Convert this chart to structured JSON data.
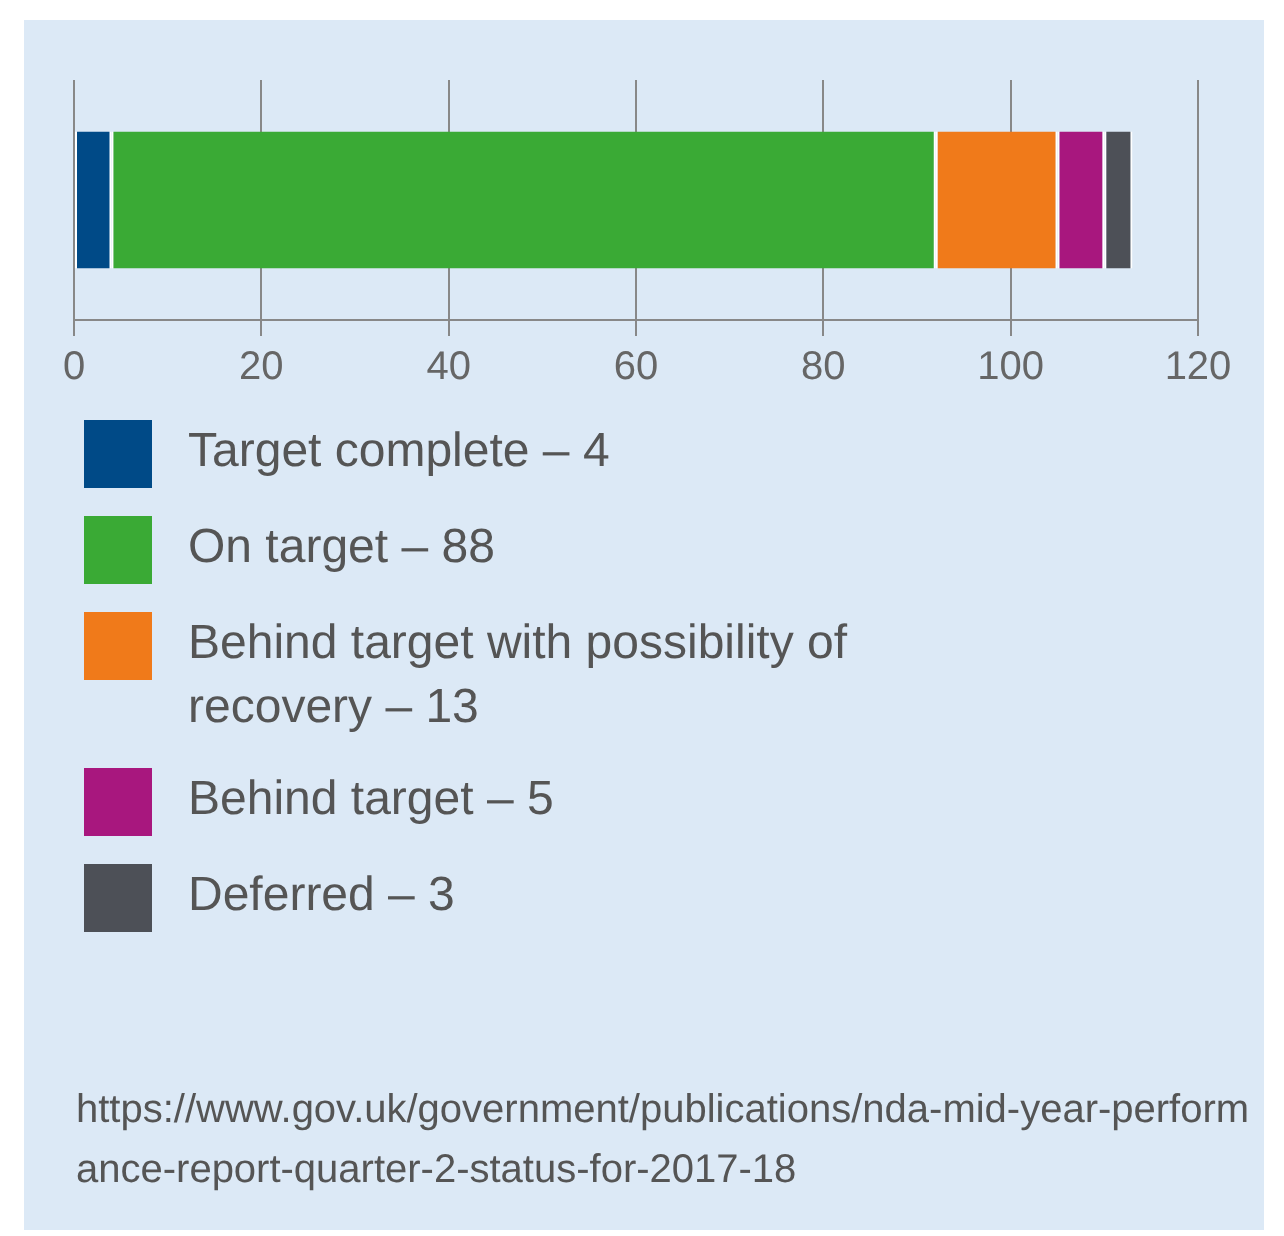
{
  "chart_data": {
    "type": "bar",
    "orientation": "horizontal",
    "stacked": true,
    "categories": [
      null
    ],
    "series": [
      {
        "name": "Target complete – 4",
        "color": "#004a87",
        "values": [
          4
        ]
      },
      {
        "name": "On target – 88",
        "color": "#3aaa35",
        "values": [
          88
        ]
      },
      {
        "name": "Behind target with possibility of recovery – 13",
        "color": "#f07a1a",
        "values": [
          13
        ]
      },
      {
        "name": "Behind target – 5",
        "color": "#a8177e",
        "values": [
          5
        ]
      },
      {
        "name": "Deferred – 3",
        "color": "#4d5057",
        "values": [
          3
        ]
      }
    ],
    "xlim": [
      0,
      120
    ],
    "xticks": [
      0,
      20,
      40,
      60,
      80,
      100,
      120
    ],
    "grid": "x",
    "legend": "bottom",
    "annotations": [
      "https://www.gov.uk/government/publications/nda-mid-year-performance-report-quarter-2-status-for-2017-18"
    ]
  }
}
